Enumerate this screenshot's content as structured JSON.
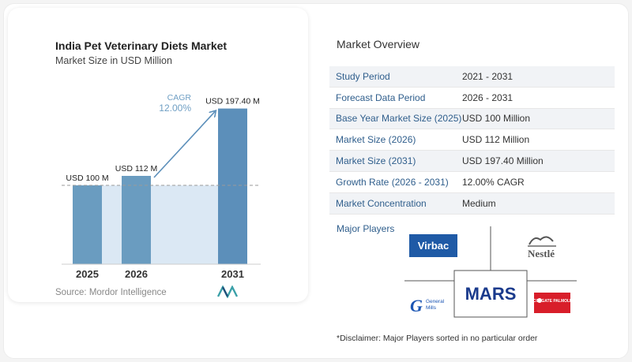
{
  "header": {
    "title": "India Pet Veterinary Diets Market",
    "subtitle": "Market Size in USD Million"
  },
  "chart_data": {
    "type": "bar",
    "categories": [
      "2025",
      "2026",
      "2031"
    ],
    "values": [
      100,
      112,
      197.4
    ],
    "data_labels": [
      "USD 100 M",
      "USD 112 M",
      "USD 197.40 M"
    ],
    "ylim": [
      0,
      205
    ],
    "cagr_label": "CAGR",
    "cagr_value": "12.00%",
    "bar_color": "#6a9cc0",
    "bar_color_highlight": "#5c8fba",
    "band_color": "#dbe8f4"
  },
  "source": {
    "text": "Source: Mordor Intelligence"
  },
  "overview": {
    "title": "Market Overview",
    "rows": [
      {
        "label": "Study Period",
        "value": "2021 - 2031"
      },
      {
        "label": "Forecast Data Period",
        "value": "2026 - 2031"
      },
      {
        "label": "Base Year Market Size (2025)",
        "value": "USD 100 Million"
      },
      {
        "label": "Market Size (2026)",
        "value": "USD 112 Million"
      },
      {
        "label": "Market Size (2031)",
        "value": "USD 197.40 Million"
      },
      {
        "label": "Growth Rate (2026 - 2031)",
        "value": "12.00% CAGR"
      },
      {
        "label": "Market Concentration",
        "value": "Medium"
      }
    ]
  },
  "players": {
    "title": "Major Players",
    "virbac": "Virbac",
    "nestle": "Nestlé",
    "mars": "MARS",
    "general_mills_1": "General",
    "general_mills_2": "Mills",
    "colgate": "COLGATE PALMOLIVE"
  },
  "disclaimer": "*Disclaimer: Major Players sorted in no particular order"
}
